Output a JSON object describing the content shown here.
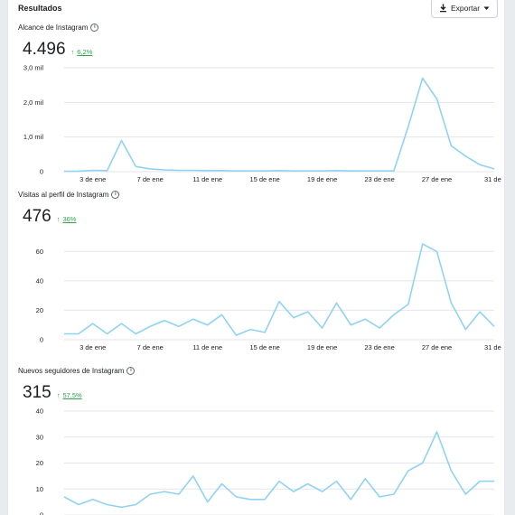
{
  "header": {
    "title": "Resultados",
    "export_label": "Exportar"
  },
  "x_ticks": [
    "3 de ene",
    "7 de ene",
    "11 de ene",
    "15 de ene",
    "19 de ene",
    "23 de ene",
    "27 de ene",
    "31 de"
  ],
  "colors": {
    "line": "#8fd3f4",
    "grid": "#e4e6eb",
    "positive": "#31a24c"
  },
  "metrics": [
    {
      "title": "Alcance de Instagram",
      "value": "4.496",
      "delta": "6,2%",
      "chart_data": {
        "type": "line",
        "y_ticks": [
          "0",
          "1,0 mil",
          "2,0 mil",
          "3,0 mil"
        ],
        "ylim": [
          0,
          3000
        ],
        "values": [
          10,
          15,
          40,
          30,
          900,
          150,
          80,
          50,
          40,
          40,
          30,
          30,
          20,
          20,
          20,
          30,
          20,
          20,
          20,
          30,
          20,
          20,
          20,
          20,
          1300,
          2700,
          2100,
          750,
          450,
          200,
          80
        ]
      }
    },
    {
      "title": "Visitas al perfil de Instagram",
      "value": "476",
      "delta": "36%",
      "chart_data": {
        "type": "line",
        "y_ticks": [
          "0",
          "20",
          "40",
          "60"
        ],
        "ylim": [
          0,
          70
        ],
        "values": [
          4,
          4,
          11,
          4,
          11,
          4,
          9,
          13,
          9,
          14,
          10,
          17,
          3,
          7,
          5,
          26,
          15,
          19,
          8,
          25,
          10,
          14,
          8,
          17,
          24,
          65,
          60,
          25,
          7,
          19,
          9
        ]
      }
    },
    {
      "title": "Nuevos seguidores de Instagram",
      "value": "315",
      "delta": "57,5%",
      "chart_data": {
        "type": "line",
        "y_ticks": [
          "0",
          "10",
          "20",
          "30",
          "40"
        ],
        "ylim": [
          0,
          40
        ],
        "values": [
          7,
          4,
          6,
          4,
          3,
          4,
          8,
          9,
          8,
          15,
          5,
          12,
          7,
          6,
          6,
          13,
          9,
          12,
          9,
          13,
          6,
          14,
          7,
          8,
          17,
          20,
          32,
          17,
          8,
          13,
          13
        ]
      }
    }
  ]
}
